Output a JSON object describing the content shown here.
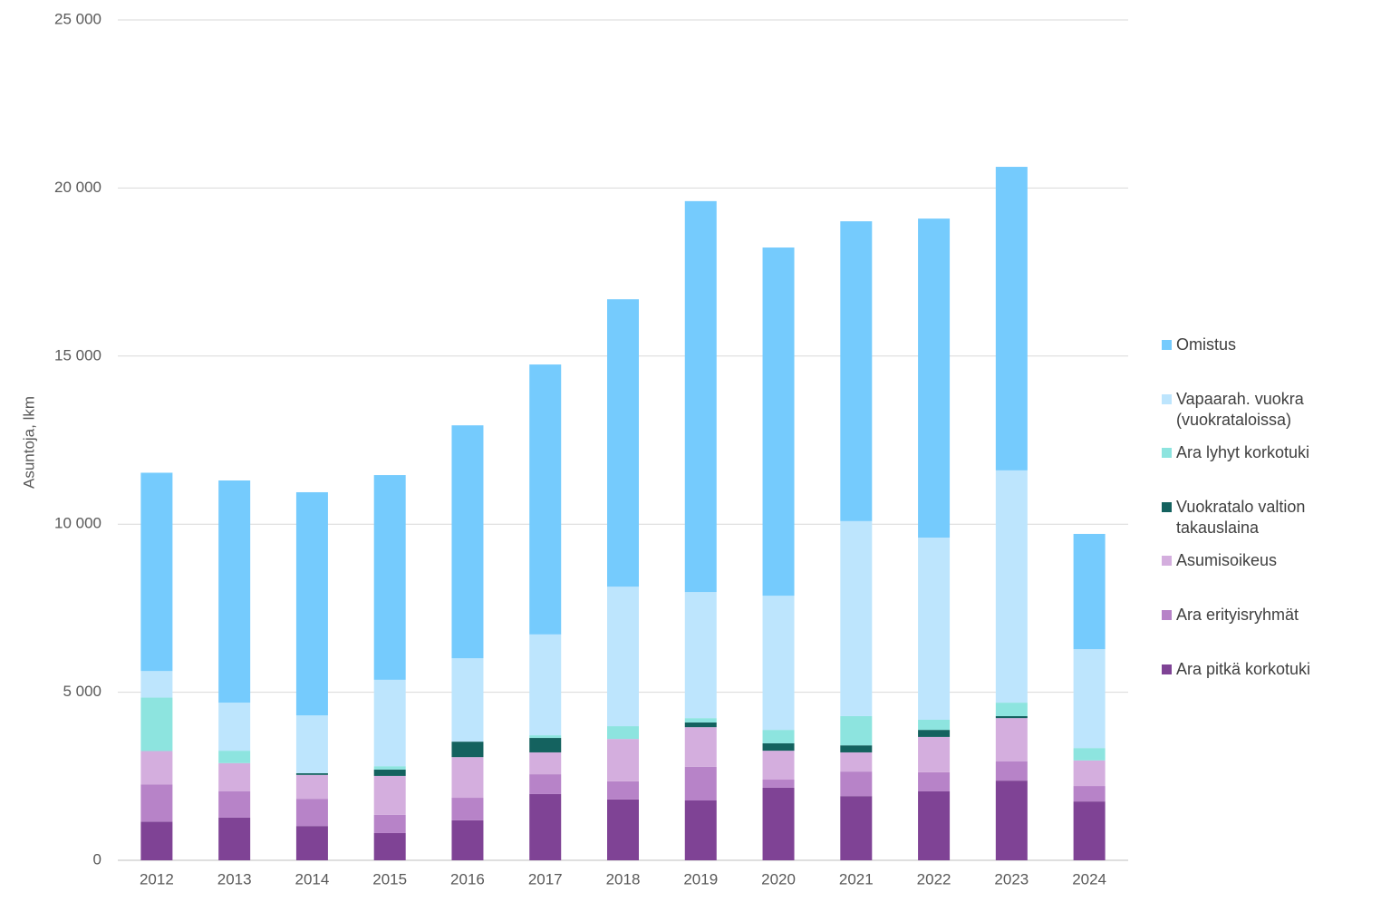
{
  "chart_data": {
    "type": "stacked_bar",
    "y_label": "Asuntoja, lkm",
    "categories": [
      "2012",
      "2013",
      "2014",
      "2015",
      "2016",
      "2017",
      "2018",
      "2019",
      "2020",
      "2021",
      "2022",
      "2023",
      "2024"
    ],
    "series": [
      {
        "name": "Ara pitkä korkotuki",
        "color": "#7f4395",
        "values": [
          1150,
          1270,
          1020,
          810,
          1190,
          1970,
          1810,
          1780,
          2160,
          1910,
          2050,
          2370,
          1750
        ]
      },
      {
        "name": "Ara erityisryhmät",
        "color": "#b783c8",
        "values": [
          1110,
          780,
          810,
          540,
          670,
          590,
          540,
          1000,
          240,
          730,
          570,
          570,
          460
        ]
      },
      {
        "name": "Asumisoikeus",
        "color": "#d4aede",
        "values": [
          990,
          840,
          710,
          1160,
          1210,
          650,
          1260,
          1180,
          860,
          570,
          1050,
          1290,
          760
        ]
      },
      {
        "name": "Vuokratalo valtion takauslaina",
        "color": "#14625f",
        "values": [
          0,
          0,
          50,
          190,
          460,
          430,
          0,
          140,
          220,
          210,
          210,
          60,
          0
        ]
      },
      {
        "name": "Ara lyhyt korkotuki",
        "color": "#8de4df",
        "values": [
          1590,
          370,
          0,
          100,
          0,
          80,
          380,
          130,
          400,
          870,
          300,
          400,
          370
        ]
      },
      {
        "name": "Vapaarah. vuokra (vuokrataloissa)",
        "color": "#bde5fd",
        "values": [
          790,
          1430,
          1720,
          2570,
          2480,
          3000,
          4150,
          3750,
          3990,
          5800,
          5420,
          6910,
          2940
        ]
      },
      {
        "name": "Omistus",
        "color": "#75cbfd",
        "values": [
          5900,
          6610,
          6640,
          6090,
          6930,
          8030,
          8550,
          11630,
          10360,
          8920,
          9490,
          9030,
          3430
        ]
      }
    ],
    "ylim": [
      0,
      25000
    ],
    "yticks": [
      0,
      {
        "value": 5000,
        "label": "5 000"
      },
      {
        "value": 10000,
        "label": "10 000"
      },
      {
        "value": 15000,
        "label": "15 000"
      },
      {
        "value": 20000,
        "label": "20 000"
      },
      {
        "value": 25000,
        "label": "25 000"
      }
    ],
    "grid": true
  }
}
